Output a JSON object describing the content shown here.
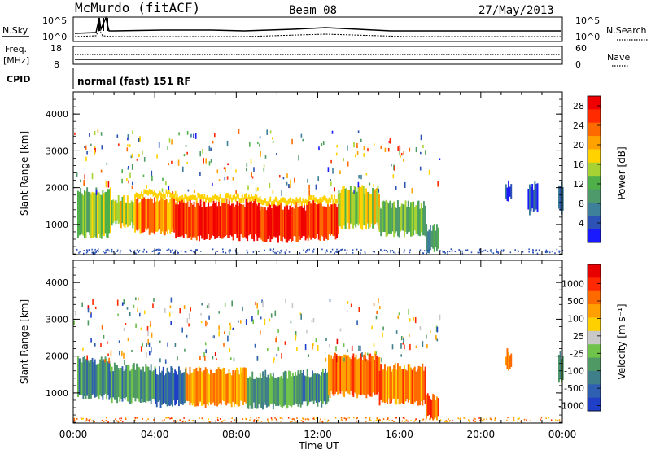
{
  "header": {
    "title": "McMurdo (fitACF)",
    "beam": "Beam 08",
    "date": "27/May/2013"
  },
  "top_panels": {
    "nsky_label": "N.Sky",
    "nsearch_label": "N.Search",
    "freq_label_1": "Freq.",
    "freq_label_2": "[MHz]",
    "nave_label": "Nave",
    "cpid_label": "CPID",
    "cpid_text": "normal (fast) 151 RF",
    "noise_ticks_left": [
      "10^5",
      "10^0"
    ],
    "noise_ticks_right": [
      "10^5",
      "10^0"
    ],
    "freq_ticks": [
      "18",
      "8"
    ],
    "nave_ticks": [
      "60",
      "0"
    ]
  },
  "chart_data": [
    {
      "type": "heatmap",
      "panel": "power",
      "ylabel": "Slant Range [km]",
      "xlabel": "Time UT",
      "x_ticks": [
        "00:00",
        "04:00",
        "08:00",
        "12:00",
        "16:00",
        "20:00",
        "00:00"
      ],
      "x_range_hours": [
        0,
        24
      ],
      "y_ticks": [
        1000,
        2000,
        3000,
        4000
      ],
      "y_range_km": [
        180,
        4600
      ],
      "colorbar": {
        "label": "Power [dB]",
        "ticks": [
          "28",
          "24",
          "20",
          "16",
          "12",
          "8",
          "4"
        ],
        "range": [
          0,
          30
        ],
        "colors": [
          "#1a1aff",
          "#2b52b4",
          "#3e7f9a",
          "#4f9a6a",
          "#4fb04a",
          "#a6d233",
          "#ffd200",
          "#ffa200",
          "#ff6a00",
          "#ff2a00",
          "#f00000"
        ]
      },
      "regions": [
        {
          "t0": 0.2,
          "t1": 1.8,
          "r0": 700,
          "r1": 1900,
          "level": 0.45
        },
        {
          "t0": 1.8,
          "t1": 3.0,
          "r0": 1000,
          "r1": 1700,
          "level": 0.55
        },
        {
          "t0": 3.0,
          "t1": 5.0,
          "r0": 800,
          "r1": 1700,
          "level": 0.75
        },
        {
          "t0": 5.0,
          "t1": 9.0,
          "r0": 650,
          "r1": 1600,
          "level": 0.95
        },
        {
          "t0": 9.0,
          "t1": 11.5,
          "r0": 600,
          "r1": 1500,
          "level": 0.95
        },
        {
          "t0": 11.5,
          "t1": 13.0,
          "r0": 650,
          "r1": 1550,
          "level": 0.9
        },
        {
          "t0": 13.0,
          "t1": 15.0,
          "r0": 950,
          "r1": 1950,
          "level": 0.55
        },
        {
          "t0": 15.0,
          "t1": 17.3,
          "r0": 750,
          "r1": 1550,
          "level": 0.4
        },
        {
          "t0": 17.3,
          "t1": 17.9,
          "r0": 300,
          "r1": 900,
          "level": 0.3
        },
        {
          "t0": 21.2,
          "t1": 21.5,
          "r0": 1700,
          "r1": 2100,
          "level": 0.1
        },
        {
          "t0": 22.3,
          "t1": 22.8,
          "r0": 1350,
          "r1": 2050,
          "level": 0.1
        },
        {
          "t0": 23.8,
          "t1": 24.0,
          "r0": 1350,
          "r1": 2050,
          "level": 0.15
        }
      ]
    },
    {
      "type": "heatmap",
      "panel": "velocity",
      "ylabel": "Slant Range [km]",
      "xlabel": "Time UT",
      "x_ticks": [
        "00:00",
        "04:00",
        "08:00",
        "12:00",
        "16:00",
        "20:00",
        "00:00"
      ],
      "x_range_hours": [
        0,
        24
      ],
      "y_ticks": [
        1000,
        2000,
        3000,
        4000
      ],
      "y_range_km": [
        180,
        4600
      ],
      "colorbar": {
        "label": "Velocity [m s⁻¹]",
        "ticks": [
          "1000",
          "500",
          "100",
          "25",
          "-25",
          "-100",
          "-500",
          "-1000"
        ],
        "colors": [
          "#1f3fc8",
          "#2e5fb0",
          "#3f7f8a",
          "#4f9a64",
          "#6fc24a",
          "#c8c8c8",
          "#ffd000",
          "#ffa000",
          "#ff6a00",
          "#ff2800",
          "#e80000"
        ]
      },
      "regions": [
        {
          "t0": 0.2,
          "t1": 1.8,
          "r0": 900,
          "r1": 1900,
          "level": 0.25
        },
        {
          "t0": 1.8,
          "t1": 4.0,
          "r0": 800,
          "r1": 1700,
          "level": 0.25
        },
        {
          "t0": 4.0,
          "t1": 5.5,
          "r0": 700,
          "r1": 1600,
          "level": 0.1
        },
        {
          "t0": 5.5,
          "t1": 8.5,
          "r0": 700,
          "r1": 1600,
          "level": 0.7
        },
        {
          "t0": 8.5,
          "t1": 11.0,
          "r0": 650,
          "r1": 1500,
          "level": 0.3
        },
        {
          "t0": 11.0,
          "t1": 12.5,
          "r0": 700,
          "r1": 1550,
          "level": 0.25
        },
        {
          "t0": 12.5,
          "t1": 15.0,
          "r0": 950,
          "r1": 2000,
          "level": 0.8
        },
        {
          "t0": 15.0,
          "t1": 17.3,
          "r0": 750,
          "r1": 1700,
          "level": 0.75
        },
        {
          "t0": 17.3,
          "t1": 17.9,
          "r0": 300,
          "r1": 900,
          "level": 0.85
        },
        {
          "t0": 21.2,
          "t1": 21.5,
          "r0": 1700,
          "r1": 2100,
          "level": 0.75
        },
        {
          "t0": 23.8,
          "t1": 24.0,
          "r0": 1350,
          "r1": 2050,
          "level": 0.3
        }
      ]
    }
  ]
}
